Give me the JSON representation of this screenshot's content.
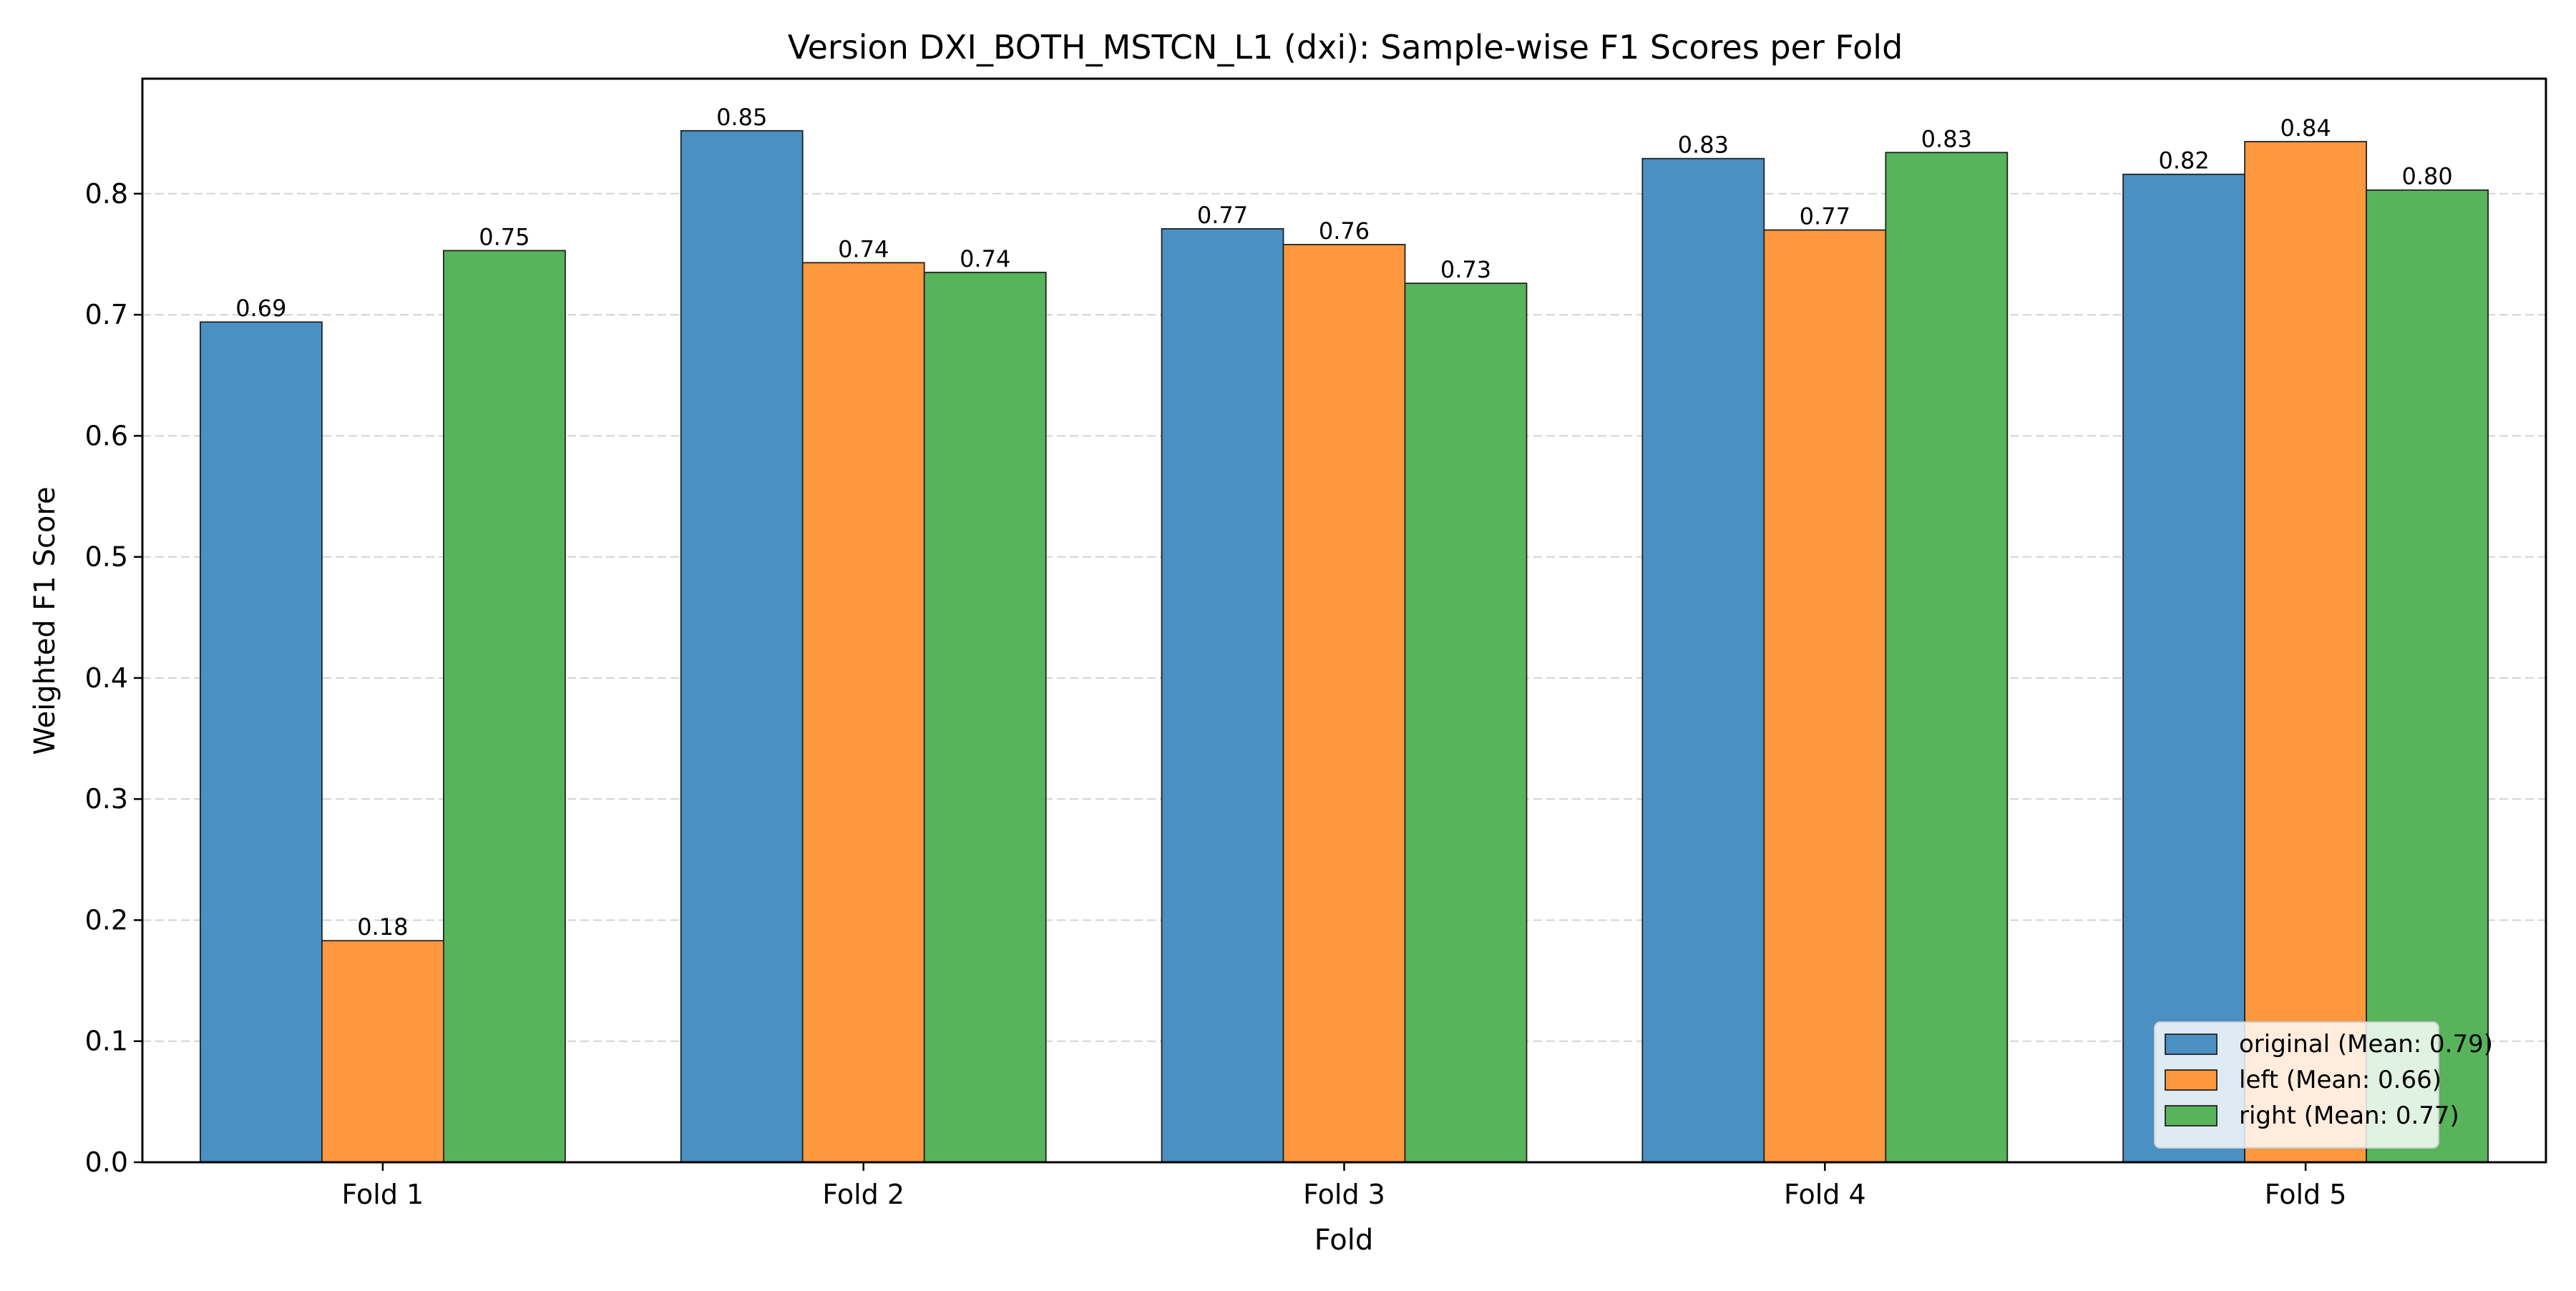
{
  "chart_data": {
    "type": "bar",
    "title": "Version DXI_BOTH_MSTCN_L1 (dxi): Sample-wise F1 Scores per Fold",
    "xlabel": "Fold",
    "ylabel": "Weighted F1 Score",
    "categories": [
      "Fold 1",
      "Fold 2",
      "Fold 3",
      "Fold 4",
      "Fold 5"
    ],
    "series": [
      {
        "name": "original (Mean: 0.79)",
        "values": [
          0.694,
          0.852,
          0.771,
          0.829,
          0.816
        ],
        "labels": [
          "0.69",
          "0.85",
          "0.77",
          "0.83",
          "0.82"
        ],
        "color": "#4a90c2"
      },
      {
        "name": "left (Mean: 0.66)",
        "values": [
          0.183,
          0.743,
          0.758,
          0.77,
          0.843
        ],
        "labels": [
          "0.18",
          "0.74",
          "0.76",
          "0.77",
          "0.84"
        ],
        "color": "#fd983f"
      },
      {
        "name": "right (Mean: 0.77)",
        "values": [
          0.753,
          0.735,
          0.726,
          0.834,
          0.803
        ],
        "labels": [
          "0.75",
          "0.74",
          "0.73",
          "0.83",
          "0.80"
        ],
        "color": "#57b45a"
      }
    ],
    "ylim": [
      0,
      0.895
    ],
    "yticks": [
      0.0,
      0.1,
      0.2,
      0.3,
      0.4,
      0.5,
      0.6,
      0.7,
      0.8
    ],
    "ytick_labels": [
      "0.0",
      "0.1",
      "0.2",
      "0.3",
      "0.4",
      "0.5",
      "0.6",
      "0.7",
      "0.8"
    ],
    "grid": "y-dashed",
    "legend_position": "lower-right"
  }
}
